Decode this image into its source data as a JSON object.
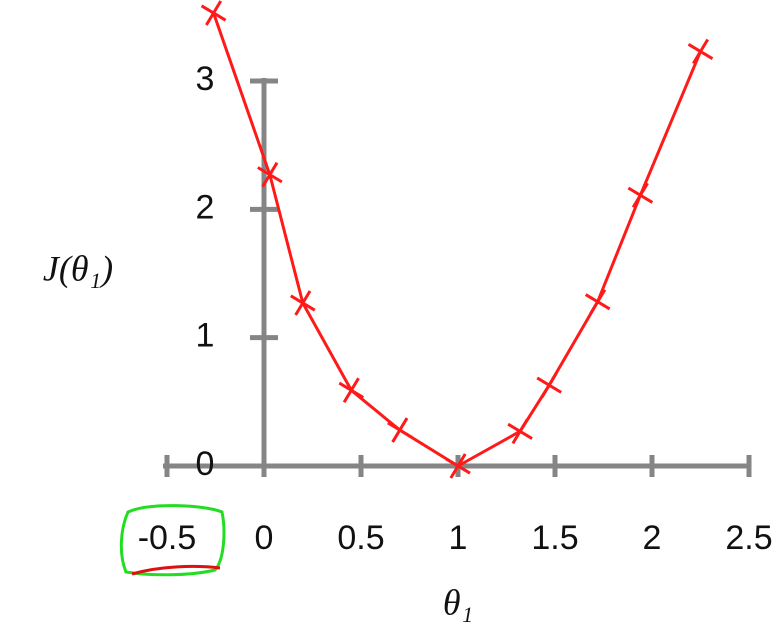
{
  "chart_data": {
    "type": "line",
    "x_label": "θ₁",
    "y_label": "J(θ₁)",
    "x": [
      -0.26,
      0.03,
      0.2,
      0.45,
      0.7,
      1,
      1.32,
      1.47,
      1.72,
      1.94,
      2.25
    ],
    "series": [
      {
        "color": "#ff1a1a",
        "marker": "x",
        "values": [
          3.53,
          2.27,
          1.27,
          0.59,
          0.28,
          0,
          0.27,
          0.63,
          1.28,
          2.11,
          3.23
        ]
      }
    ],
    "xlim": [
      -0.5,
      2.5
    ],
    "ylim": [
      0,
      3
    ],
    "xticks": [
      -0.5,
      0,
      0.5,
      1,
      1.5,
      2,
      2.5
    ],
    "yticks": [
      0,
      1,
      2,
      3
    ]
  }
}
